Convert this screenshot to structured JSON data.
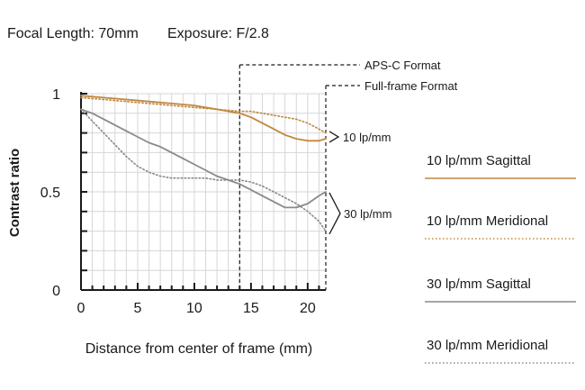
{
  "header": {
    "focal_length": "Focal Length: 70mm",
    "exposure": "Exposure: F/2.8"
  },
  "chart_data": {
    "type": "line",
    "title": "",
    "xlabel": "Distance from center of frame (mm)",
    "ylabel": "Contrast ratio",
    "xlim": [
      0,
      21.6
    ],
    "ylim": [
      0,
      1
    ],
    "x_ticks": [
      0,
      5,
      10,
      15,
      20
    ],
    "y_tick_labels": [
      {
        "value": 1,
        "label": "1"
      },
      {
        "value": 0.5,
        "label": "0.5"
      },
      {
        "value": 0,
        "label": "0"
      }
    ],
    "grid": true,
    "format_markers": [
      {
        "label": "APS-C Format",
        "x": 14
      },
      {
        "label": "Full-frame Format",
        "x": 21.6
      }
    ],
    "group_labels": [
      {
        "label": "10 lp/mm",
        "y": 0.78
      },
      {
        "label": "30 lp/mm",
        "y": 0.39
      }
    ],
    "series": [
      {
        "name": "10 lp/mm Sagittal",
        "color": "#c0873f",
        "dash": "solid",
        "points": [
          [
            0,
            0.99
          ],
          [
            2,
            0.98
          ],
          [
            4,
            0.97
          ],
          [
            6,
            0.96
          ],
          [
            8,
            0.95
          ],
          [
            10,
            0.94
          ],
          [
            12,
            0.92
          ],
          [
            14,
            0.9
          ],
          [
            15,
            0.88
          ],
          [
            16,
            0.85
          ],
          [
            17,
            0.82
          ],
          [
            18,
            0.79
          ],
          [
            19,
            0.77
          ],
          [
            20,
            0.76
          ],
          [
            21,
            0.76
          ],
          [
            21.6,
            0.77
          ]
        ]
      },
      {
        "name": "10 lp/mm Meridional",
        "color": "#c0873f",
        "dash": "dotted",
        "points": [
          [
            0,
            0.98
          ],
          [
            2,
            0.97
          ],
          [
            4,
            0.96
          ],
          [
            6,
            0.95
          ],
          [
            8,
            0.94
          ],
          [
            10,
            0.93
          ],
          [
            12,
            0.92
          ],
          [
            14,
            0.91
          ],
          [
            15,
            0.91
          ],
          [
            16,
            0.9
          ],
          [
            17,
            0.89
          ],
          [
            18,
            0.88
          ],
          [
            19,
            0.87
          ],
          [
            20,
            0.85
          ],
          [
            21,
            0.82
          ],
          [
            21.6,
            0.8
          ]
        ]
      },
      {
        "name": "30 lp/mm Sagittal",
        "color": "#8a8a8a",
        "dash": "solid",
        "points": [
          [
            0,
            0.92
          ],
          [
            1,
            0.9
          ],
          [
            2,
            0.87
          ],
          [
            3,
            0.84
          ],
          [
            4,
            0.81
          ],
          [
            5,
            0.78
          ],
          [
            6,
            0.75
          ],
          [
            7,
            0.73
          ],
          [
            8,
            0.7
          ],
          [
            9,
            0.67
          ],
          [
            10,
            0.64
          ],
          [
            11,
            0.61
          ],
          [
            12,
            0.58
          ],
          [
            13,
            0.56
          ],
          [
            14,
            0.54
          ],
          [
            15,
            0.51
          ],
          [
            16,
            0.48
          ],
          [
            17,
            0.45
          ],
          [
            18,
            0.42
          ],
          [
            19,
            0.42
          ],
          [
            20,
            0.44
          ],
          [
            21,
            0.48
          ],
          [
            21.6,
            0.5
          ]
        ]
      },
      {
        "name": "30 lp/mm Meridional",
        "color": "#8a8a8a",
        "dash": "dotted",
        "points": [
          [
            0,
            0.92
          ],
          [
            1,
            0.86
          ],
          [
            2,
            0.8
          ],
          [
            3,
            0.74
          ],
          [
            4,
            0.68
          ],
          [
            5,
            0.63
          ],
          [
            6,
            0.6
          ],
          [
            7,
            0.58
          ],
          [
            8,
            0.57
          ],
          [
            9,
            0.57
          ],
          [
            10,
            0.57
          ],
          [
            11,
            0.57
          ],
          [
            12,
            0.56
          ],
          [
            13,
            0.56
          ],
          [
            14,
            0.56
          ],
          [
            15,
            0.55
          ],
          [
            16,
            0.53
          ],
          [
            17,
            0.5
          ],
          [
            18,
            0.47
          ],
          [
            19,
            0.44
          ],
          [
            20,
            0.4
          ],
          [
            21,
            0.35
          ],
          [
            21.6,
            0.3
          ]
        ]
      }
    ]
  }
}
